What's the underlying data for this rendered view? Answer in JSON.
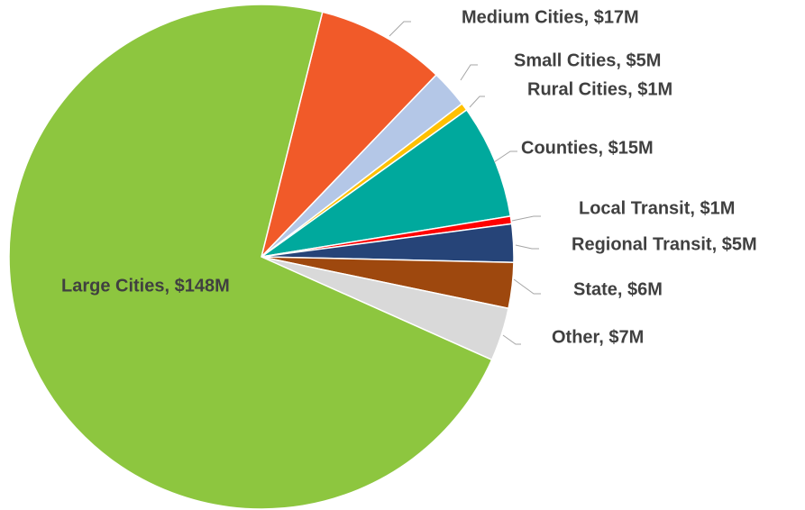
{
  "chart_data": {
    "type": "pie",
    "categories": [
      "Medium Cities, $17M",
      "Small Cities, $5M",
      "Rural Cities, $1M",
      "Counties, $15M",
      "Local Transit, $1M",
      "Regional Transit, $5M",
      "State, $6M",
      "Other, $7M",
      "Large Cities, $148M"
    ],
    "values": [
      17,
      5,
      1,
      15,
      1,
      5,
      6,
      7,
      148
    ],
    "colors": [
      "#f15a29",
      "#b4c7e7",
      "#ffc000",
      "#00a99d",
      "#ff0000",
      "#264478",
      "#9e480e",
      "#d9d9d9",
      "#8dc63f"
    ]
  }
}
